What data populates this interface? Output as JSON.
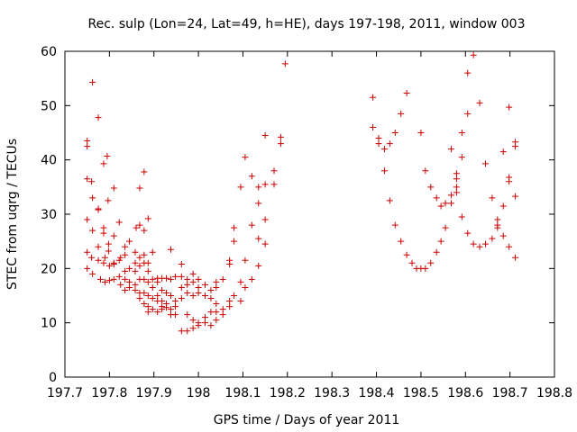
{
  "chart_data": {
    "type": "scatter",
    "title": "Rec. sulp (Lon=24, Lat=49, h=HE), days 197-198, 2011, window 003",
    "xlabel": "GPS time / Days of year 2011",
    "ylabel": "STEC from uqrg / TECUs",
    "xlim": [
      197.7,
      198.8
    ],
    "ylim": [
      0,
      60
    ],
    "xticks": [
      197.7,
      197.8,
      197.9,
      198,
      198.1,
      198.2,
      198.3,
      198.4,
      198.5,
      198.6,
      198.7,
      198.8
    ],
    "xtick_labels": [
      "197.7",
      "197.8",
      "197.9",
      "198",
      "198.1",
      "198.2",
      "198.3",
      "198.4",
      "198.5",
      "198.6",
      "198.7",
      "198.8"
    ],
    "yticks": [
      0,
      10,
      20,
      30,
      40,
      50,
      60
    ],
    "ytick_labels": [
      "0",
      "10",
      "20",
      "30",
      "40",
      "50",
      "60"
    ],
    "grid": false,
    "marker": "+",
    "color": "#cc0000",
    "series": [
      {
        "name": "STEC",
        "points": [
          [
            197.75,
            43.5
          ],
          [
            197.75,
            42.5
          ],
          [
            197.75,
            36.5
          ],
          [
            197.75,
            29.0
          ],
          [
            197.75,
            23.0
          ],
          [
            197.75,
            20.0
          ],
          [
            197.762,
            54.3
          ],
          [
            197.76,
            36.0
          ],
          [
            197.762,
            33.0
          ],
          [
            197.762,
            27.0
          ],
          [
            197.76,
            22.0
          ],
          [
            197.762,
            19.0
          ],
          [
            197.775,
            47.8
          ],
          [
            197.775,
            31.0
          ],
          [
            197.775,
            30.8
          ],
          [
            197.775,
            24.0
          ],
          [
            197.775,
            21.5
          ],
          [
            197.78,
            18.0
          ],
          [
            197.787,
            39.3
          ],
          [
            197.787,
            27.5
          ],
          [
            197.787,
            26.5
          ],
          [
            197.79,
            22.0
          ],
          [
            197.787,
            21.0
          ],
          [
            197.79,
            17.5
          ],
          [
            197.795,
            40.7
          ],
          [
            197.797,
            32.5
          ],
          [
            197.798,
            24.5
          ],
          [
            197.798,
            23.2
          ],
          [
            197.8,
            20.5
          ],
          [
            197.8,
            17.8
          ],
          [
            197.81,
            34.8
          ],
          [
            197.81,
            26.0
          ],
          [
            197.81,
            21.0
          ],
          [
            197.81,
            18.0
          ],
          [
            197.81,
            20.8
          ],
          [
            197.822,
            28.5
          ],
          [
            197.822,
            21.5
          ],
          [
            197.822,
            18.5
          ],
          [
            197.825,
            17.0
          ],
          [
            197.825,
            22.0
          ],
          [
            197.835,
            24.0
          ],
          [
            197.835,
            19.5
          ],
          [
            197.835,
            18.0
          ],
          [
            197.835,
            16.0
          ],
          [
            197.835,
            22.5
          ],
          [
            197.845,
            25.0
          ],
          [
            197.845,
            20.0
          ],
          [
            197.845,
            17.5
          ],
          [
            197.845,
            16.5
          ],
          [
            197.86,
            27.5
          ],
          [
            197.858,
            21.0
          ],
          [
            197.858,
            19.5
          ],
          [
            197.858,
            17.0
          ],
          [
            197.858,
            16.0
          ],
          [
            197.858,
            23.0
          ],
          [
            197.868,
            34.8
          ],
          [
            197.868,
            28.0
          ],
          [
            197.868,
            20.5
          ],
          [
            197.868,
            18.0
          ],
          [
            197.868,
            15.5
          ],
          [
            197.868,
            14.5
          ],
          [
            197.868,
            22.0
          ],
          [
            197.878,
            37.8
          ],
          [
            197.878,
            27.0
          ],
          [
            197.878,
            21.0
          ],
          [
            197.878,
            18.0
          ],
          [
            197.878,
            15.5
          ],
          [
            197.878,
            13.5
          ],
          [
            197.878,
            22.5
          ],
          [
            197.887,
            29.2
          ],
          [
            197.887,
            19.5
          ],
          [
            197.887,
            17.5
          ],
          [
            197.887,
            15.0
          ],
          [
            197.887,
            13.0
          ],
          [
            197.887,
            12.0
          ],
          [
            197.887,
            21.0
          ],
          [
            197.897,
            23.0
          ],
          [
            197.897,
            18.0
          ],
          [
            197.897,
            16.5
          ],
          [
            197.897,
            14.5
          ],
          [
            197.897,
            12.5
          ],
          [
            197.908,
            18.2
          ],
          [
            197.908,
            17.5
          ],
          [
            197.908,
            15.0
          ],
          [
            197.908,
            14.0
          ],
          [
            197.908,
            12.0
          ],
          [
            197.918,
            18.2
          ],
          [
            197.918,
            16.0
          ],
          [
            197.918,
            14.0
          ],
          [
            197.918,
            13.0
          ],
          [
            197.918,
            12.5
          ],
          [
            197.928,
            18.2
          ],
          [
            197.928,
            15.5
          ],
          [
            197.928,
            13.5
          ],
          [
            197.928,
            12.8
          ],
          [
            197.938,
            23.5
          ],
          [
            197.938,
            18.0
          ],
          [
            197.938,
            15.0
          ],
          [
            197.938,
            12.5
          ],
          [
            197.938,
            11.5
          ],
          [
            197.948,
            18.5
          ],
          [
            197.948,
            14.0
          ],
          [
            197.948,
            13.0
          ],
          [
            197.948,
            11.5
          ],
          [
            197.962,
            20.8
          ],
          [
            197.962,
            18.5
          ],
          [
            197.962,
            16.5
          ],
          [
            197.962,
            14.5
          ],
          [
            197.962,
            8.5
          ],
          [
            197.975,
            18.0
          ],
          [
            197.975,
            17.0
          ],
          [
            197.975,
            15.5
          ],
          [
            197.975,
            11.5
          ],
          [
            197.975,
            8.5
          ],
          [
            197.988,
            19.0
          ],
          [
            197.988,
            17.5
          ],
          [
            197.988,
            15.0
          ],
          [
            197.988,
            10.5
          ],
          [
            197.988,
            9.0
          ],
          [
            198.0,
            18.0
          ],
          [
            198.0,
            16.5
          ],
          [
            198.0,
            15.5
          ],
          [
            198.0,
            10.0
          ],
          [
            198.0,
            9.5
          ],
          [
            198.015,
            17.0
          ],
          [
            198.015,
            15.0
          ],
          [
            198.015,
            11.0
          ],
          [
            198.015,
            10.0
          ],
          [
            198.028,
            16.0
          ],
          [
            198.028,
            14.5
          ],
          [
            198.028,
            12.0
          ],
          [
            198.028,
            9.5
          ],
          [
            198.04,
            17.5
          ],
          [
            198.04,
            16.5
          ],
          [
            198.04,
            13.5
          ],
          [
            198.04,
            12.0
          ],
          [
            198.04,
            10.5
          ],
          [
            198.055,
            18.0
          ],
          [
            198.055,
            12.5
          ],
          [
            198.055,
            11.5
          ],
          [
            198.07,
            20.8
          ],
          [
            198.07,
            21.5
          ],
          [
            198.07,
            14.0
          ],
          [
            198.07,
            13.0
          ],
          [
            198.08,
            27.5
          ],
          [
            198.08,
            25.0
          ],
          [
            198.08,
            15.0
          ],
          [
            198.095,
            35.0
          ],
          [
            198.095,
            17.5
          ],
          [
            198.095,
            14.0
          ],
          [
            198.105,
            40.5
          ],
          [
            198.105,
            21.5
          ],
          [
            198.105,
            16.5
          ],
          [
            198.12,
            37.0
          ],
          [
            198.12,
            28.0
          ],
          [
            198.12,
            18.0
          ],
          [
            198.135,
            35.0
          ],
          [
            198.135,
            32.0
          ],
          [
            198.135,
            25.5
          ],
          [
            198.135,
            20.5
          ],
          [
            198.15,
            44.5
          ],
          [
            198.15,
            35.5
          ],
          [
            198.15,
            29.0
          ],
          [
            198.15,
            24.5
          ],
          [
            198.17,
            38.0
          ],
          [
            198.17,
            35.5
          ],
          [
            198.185,
            44.2
          ],
          [
            198.185,
            43.0
          ],
          [
            198.195,
            57.7
          ],
          [
            198.392,
            51.5
          ],
          [
            198.392,
            46.0
          ],
          [
            198.405,
            44.0
          ],
          [
            198.405,
            43.0
          ],
          [
            198.418,
            42.0
          ],
          [
            198.418,
            38.0
          ],
          [
            198.43,
            43.0
          ],
          [
            198.43,
            32.5
          ],
          [
            198.442,
            45.0
          ],
          [
            198.442,
            28.0
          ],
          [
            198.455,
            48.5
          ],
          [
            198.455,
            25.0
          ],
          [
            198.468,
            52.3
          ],
          [
            198.468,
            22.5
          ],
          [
            198.48,
            21.0
          ],
          [
            198.49,
            20.0
          ],
          [
            198.5,
            45.0
          ],
          [
            198.5,
            20.0
          ],
          [
            198.51,
            38.0
          ],
          [
            198.51,
            20.0
          ],
          [
            198.522,
            35.0
          ],
          [
            198.522,
            21.0
          ],
          [
            198.535,
            33.0
          ],
          [
            198.535,
            23.0
          ],
          [
            198.545,
            31.5
          ],
          [
            198.545,
            25.0
          ],
          [
            198.555,
            32.0
          ],
          [
            198.555,
            27.5
          ],
          [
            198.568,
            42.0
          ],
          [
            198.568,
            33.5
          ],
          [
            198.568,
            32.0
          ],
          [
            198.58,
            37.5
          ],
          [
            198.58,
            36.5
          ],
          [
            198.58,
            35.0
          ],
          [
            198.58,
            34.0
          ],
          [
            198.592,
            45.0
          ],
          [
            198.592,
            40.5
          ],
          [
            198.592,
            29.5
          ],
          [
            198.605,
            56.0
          ],
          [
            198.605,
            48.5
          ],
          [
            198.605,
            26.5
          ],
          [
            198.618,
            59.3
          ],
          [
            198.618,
            24.5
          ],
          [
            198.632,
            50.5
          ],
          [
            198.632,
            24.0
          ],
          [
            198.645,
            39.3
          ],
          [
            198.645,
            24.5
          ],
          [
            198.66,
            33.0
          ],
          [
            198.66,
            25.5
          ],
          [
            198.672,
            29.0
          ],
          [
            198.672,
            28.0
          ],
          [
            198.672,
            27.5
          ],
          [
            198.685,
            41.5
          ],
          [
            198.685,
            31.5
          ],
          [
            198.685,
            26.0
          ],
          [
            198.698,
            49.7
          ],
          [
            198.698,
            36.8
          ],
          [
            198.698,
            36.0
          ],
          [
            198.698,
            24.0
          ],
          [
            198.712,
            43.3
          ],
          [
            198.712,
            42.5
          ],
          [
            198.712,
            33.3
          ],
          [
            198.712,
            22.0
          ]
        ]
      }
    ]
  }
}
